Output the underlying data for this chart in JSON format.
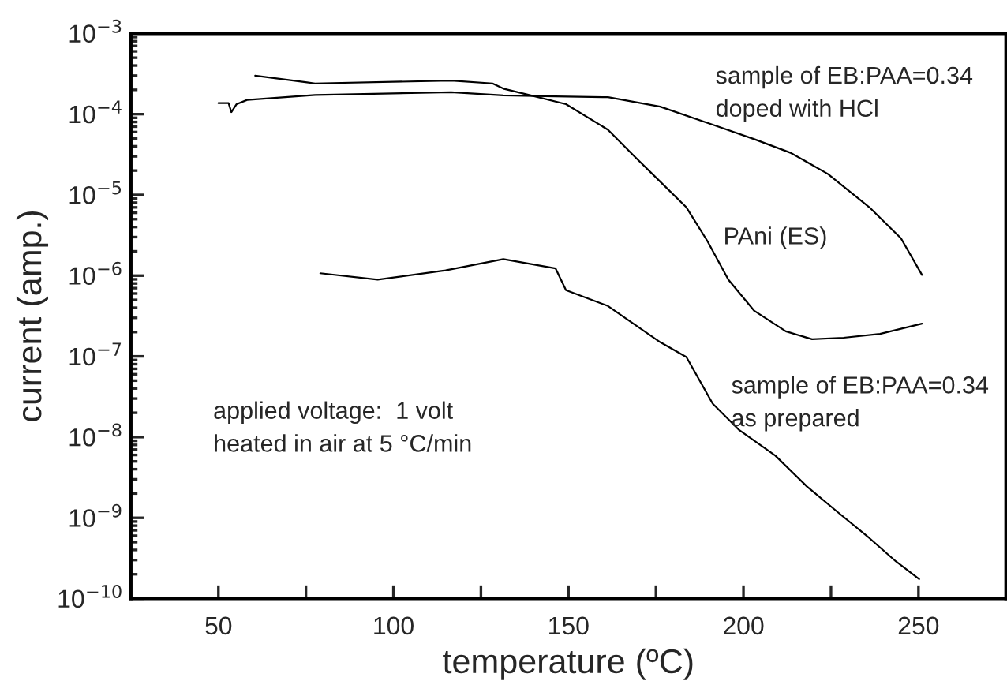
{
  "chart_data": {
    "type": "line",
    "xlabel": "temperature (ºC)",
    "ylabel": "current (amp.)",
    "log": "y",
    "xlim": [
      25,
      275
    ],
    "ylim": [
      1e-10,
      0.001
    ],
    "xticks": [
      50,
      {
        "value": 75,
        "label": null
      },
      100,
      {
        "value": 125,
        "label": null
      },
      150,
      {
        "value": 175,
        "label": null
      },
      200,
      {
        "value": 225,
        "label": null
      },
      250
    ],
    "yticks": [
      {
        "value": 1e-10,
        "label": "10$^{−10}$"
      },
      {
        "value": 1e-09,
        "label": "10$^{−9}$"
      },
      {
        "value": 1e-08,
        "label": "10$^{−8}$"
      },
      {
        "value": 1e-07,
        "label": "10$^{−7}$"
      },
      {
        "value": 1e-06,
        "label": "10$^{−6}$"
      },
      {
        "value": 1e-05,
        "label": "10$^{−5}$"
      },
      {
        "value": 0.0001,
        "label": "10$^{−4}$"
      },
      {
        "value": 0.001,
        "label": "10$^{−3}$"
      }
    ],
    "grid": false,
    "legend": false,
    "marker": "none",
    "line_style": "solid",
    "series": [
      {
        "color": "#000000",
        "x": [
          60.5,
          75.3,
          77.6,
          116.5,
          128.3,
          131.4,
          140.4,
          149.3,
          161.3,
          168.7,
          176.2,
          183.7,
          189.7,
          195.7,
          203.1,
          212.1,
          219.6,
          228.6,
          239,
          251
        ],
        "values": [
          0.0003,
          0.000247,
          0.00024,
          0.00026,
          0.00024,
          0.000207,
          0.000166,
          0.000133,
          6.4e-05,
          3.05e-05,
          1.46e-05,
          7e-06,
          2.68e-06,
          8.9e-07,
          3.66e-07,
          2.04e-07,
          1.63e-07,
          1.7e-07,
          1.9e-07,
          2.54e-07
        ]
      },
      {
        "color": "#000000",
        "x": [
          50,
          52.9,
          53.7,
          55.2,
          58.2,
          77.6,
          116.5,
          131.4,
          146.3,
          161.3,
          176.2,
          191.2,
          203.1,
          213.6,
          224.1,
          236,
          245,
          251
        ],
        "values": [
          0.000137,
          0.000137,
          0.000106,
          0.000133,
          0.00015,
          0.000173,
          0.000187,
          0.000171,
          0.000166,
          0.000162,
          0.000124,
          7.4e-05,
          4.9e-05,
          3.3e-05,
          1.82e-05,
          7e-06,
          2.9e-06,
          1.02e-06
        ]
      },
      {
        "color": "#000000",
        "x": [
          79.1,
          95.5,
          114.9,
          131.4,
          146.3,
          149.3,
          161.3,
          176.2,
          183.7,
          191.2,
          198.6,
          209.1,
          218.1,
          227,
          236,
          243.5,
          250.2
        ],
        "values": [
          1.07e-06,
          8.9e-07,
          1.16e-06,
          1.6e-06,
          1.23e-06,
          6.6e-07,
          4.2e-07,
          1.5e-07,
          9.8e-08,
          2.6e-08,
          1.24e-08,
          5.9e-09,
          2.45e-09,
          1.17e-09,
          5.6e-10,
          2.9e-10,
          1.74e-10
        ]
      }
    ],
    "annotations": [
      "sample of EB:PAA=0.34\ndoped with HCl",
      "PAni (ES)",
      "sample of EB:PAA=0.34\nas prepared",
      "applied voltage:  1 volt\nheated in air at 5 °C/min"
    ]
  }
}
